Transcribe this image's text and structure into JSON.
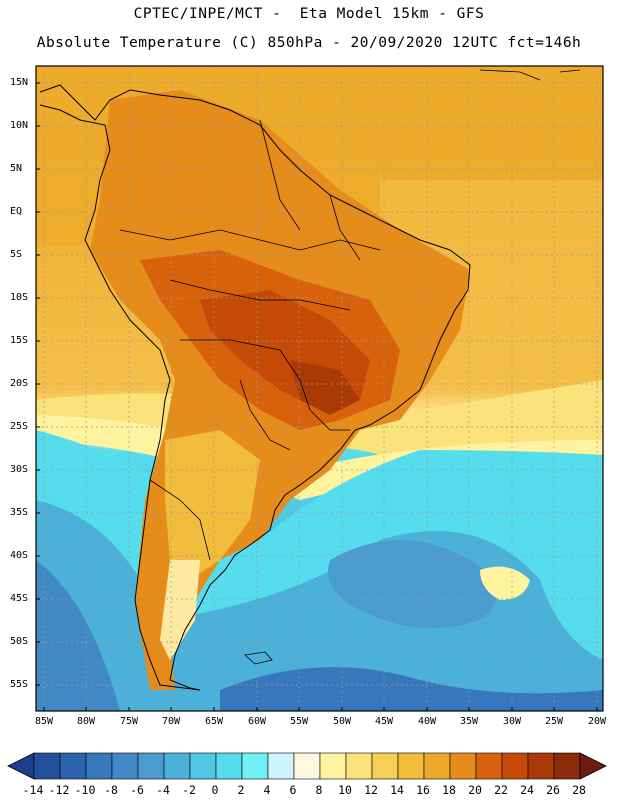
{
  "header": {
    "line1": "CPTEC/INPE/MCT -  Eta Model 15km - GFS",
    "line2": "Absolute Temperature (C) 850hPa - 20/09/2020 12UTC fct=146h"
  },
  "axes": {
    "lat_labels": [
      "15N",
      "10N",
      "5N",
      "EQ",
      "5S",
      "10S",
      "15S",
      "20S",
      "25S",
      "30S",
      "35S",
      "40S",
      "45S",
      "50S",
      "55S"
    ],
    "lon_labels": [
      "85W",
      "80W",
      "75W",
      "70W",
      "65W",
      "60W",
      "55W",
      "50W",
      "45W",
      "40W",
      "35W",
      "30W",
      "25W",
      "20W"
    ]
  },
  "colorbar": {
    "labels": [
      "-14",
      "-12",
      "-10",
      "-8",
      "-6",
      "-4",
      "-2",
      "0",
      "2",
      "4",
      "6",
      "8",
      "10",
      "12",
      "14",
      "16",
      "18",
      "20",
      "22",
      "24",
      "26",
      "28"
    ],
    "colors": [
      "#1b3f8b",
      "#23519d",
      "#2d63ad",
      "#3777bb",
      "#4189c6",
      "#4a9bd0",
      "#4cb1d9",
      "#4fc8e3",
      "#55dced",
      "#6ff0f5",
      "#cff4fb",
      "#fff7e0",
      "#fff3a0",
      "#fbe27a",
      "#f6cf57",
      "#f2bd3c",
      "#eea92b",
      "#e58c1a",
      "#d8620c",
      "#c44a06",
      "#a93a05",
      "#8b2b0a",
      "#701a14"
    ]
  }
}
